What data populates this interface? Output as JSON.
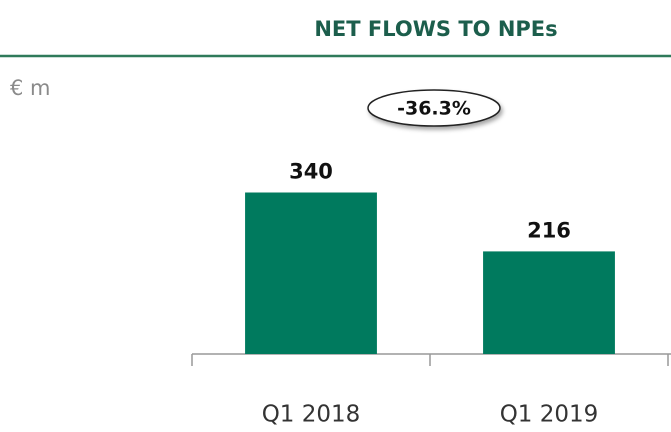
{
  "chart_data": {
    "type": "bar",
    "title": "NET FLOWS TO NPEs",
    "ylabel": "€ m",
    "annotation": "-36.3%",
    "categories": [
      "Q1 2018",
      "Q1 2019"
    ],
    "values": [
      340,
      216
    ],
    "color": "#007a5e",
    "ylim": [
      0,
      400
    ]
  }
}
